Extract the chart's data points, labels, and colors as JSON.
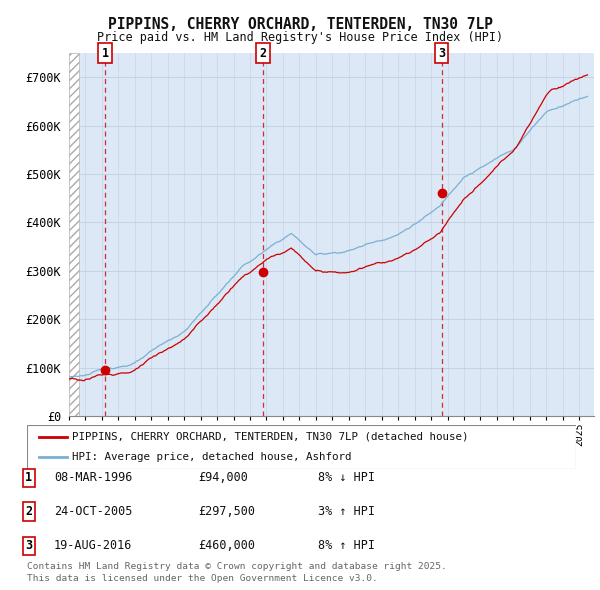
{
  "title": "PIPPINS, CHERRY ORCHARD, TENTERDEN, TN30 7LP",
  "subtitle": "Price paid vs. HM Land Registry's House Price Index (HPI)",
  "ylim": [
    0,
    750000
  ],
  "yticks": [
    0,
    100000,
    200000,
    300000,
    400000,
    500000,
    600000,
    700000
  ],
  "ytick_labels": [
    "£0",
    "£100K",
    "£200K",
    "£300K",
    "£400K",
    "£500K",
    "£600K",
    "£700K"
  ],
  "background_color": "#ffffff",
  "plot_bg_color": "#dce8f5",
  "grid_color": "#c0cfe0",
  "line_color_red": "#cc0000",
  "line_color_blue": "#7ab0d4",
  "transaction_color": "#cc0000",
  "sale_years_decimal": [
    1996.19,
    2005.81,
    2016.64
  ],
  "sale_prices": [
    94000,
    297500,
    460000
  ],
  "sale_labels": [
    "1",
    "2",
    "3"
  ],
  "sale_info": [
    {
      "num": "1",
      "date": "08-MAR-1996",
      "price": "£94,000",
      "change": "8% ↓ HPI"
    },
    {
      "num": "2",
      "date": "24-OCT-2005",
      "price": "£297,500",
      "change": "3% ↑ HPI"
    },
    {
      "num": "3",
      "date": "19-AUG-2016",
      "price": "£460,000",
      "change": "8% ↑ HPI"
    }
  ],
  "legend_line1": "PIPPINS, CHERRY ORCHARD, TENTERDEN, TN30 7LP (detached house)",
  "legend_line2": "HPI: Average price, detached house, Ashford",
  "footer": "Contains HM Land Registry data © Crown copyright and database right 2025.\nThis data is licensed under the Open Government Licence v3.0.",
  "xmin": 1994.0,
  "xmax": 2025.9
}
